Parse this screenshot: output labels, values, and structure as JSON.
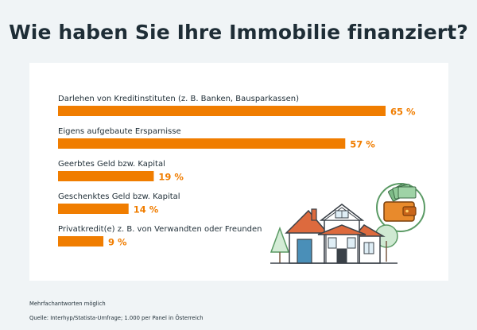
{
  "title": "Wie haben Sie Ihre Immobilie finanziert?",
  "chart_data": {
    "type": "bar",
    "orientation": "horizontal",
    "title": "Wie haben Sie Ihre Immobilie finanziert?",
    "categories": [
      "Darlehen von Kreditinstituten (z. B. Banken, Bausparkassen)",
      "Eigens aufgebaute Ersparnisse",
      "Geerbtes Geld bzw. Kapital",
      "Geschenktes Geld bzw. Kapital",
      "Privatkredit(e) z. B. von Verwandten oder Freunden"
    ],
    "values": [
      65,
      57,
      19,
      14,
      9
    ],
    "value_labels": [
      "65 %",
      "57 %",
      "19 %",
      "14 %",
      "9 %"
    ],
    "unit": "%",
    "xlabel": "",
    "ylabel": "",
    "xlim": [
      0,
      65
    ],
    "grid": false,
    "legend": "none",
    "colors": {
      "bar": "#f07d00",
      "value": "#f07d00",
      "text": "#1e2d36"
    }
  },
  "footnotes": {
    "note": "Mehrfachantworten möglich",
    "source": "Quelle: Interhyp/Statista-Umfrage; 1.000 per Panel in Österreich"
  },
  "colors": {
    "background": "#f0f4f6",
    "panel": "#ffffff"
  },
  "illustration": {
    "house_icon": "house-icon",
    "wallet_icon": "wallet-icon",
    "tree_icon": "tree-icon"
  }
}
